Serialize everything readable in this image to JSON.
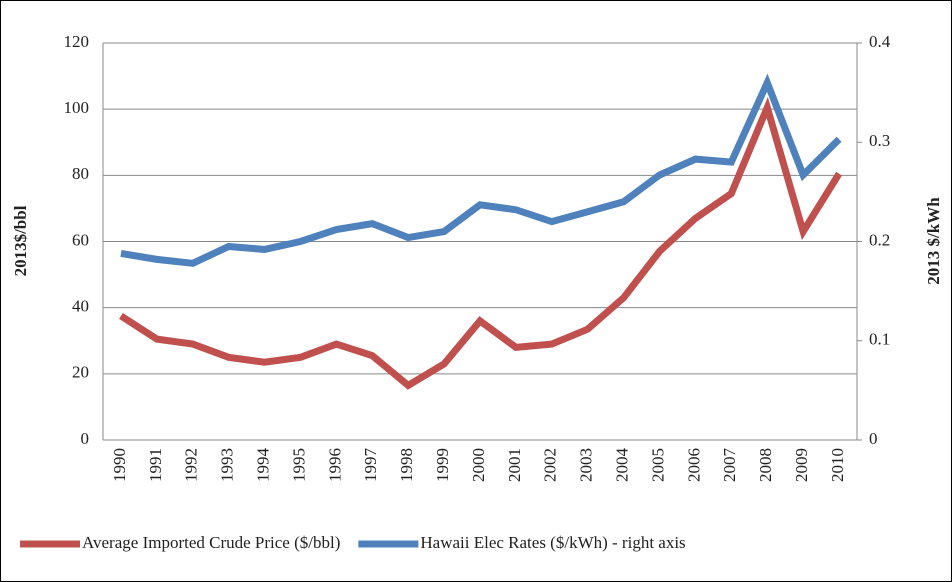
{
  "chart_data": {
    "type": "line",
    "categories": [
      "1990",
      "1991",
      "1992",
      "1993",
      "1994",
      "1995",
      "1996",
      "1997",
      "1998",
      "1999",
      "2000",
      "2001",
      "2002",
      "2003",
      "2004",
      "2005",
      "2006",
      "2007",
      "2008",
      "2009",
      "2010"
    ],
    "series": [
      {
        "name": "Average Imported Crude Price ($/bbl)",
        "color": "#c0504d",
        "values": [
          37.5,
          30.5,
          29,
          25,
          23.5,
          25,
          29,
          25.5,
          16.5,
          23,
          36,
          28,
          29,
          33.5,
          43,
          57,
          67,
          74.5,
          100.5,
          63,
          80.5
        ]
      },
      {
        "name": "Hawaii Elec Rates ($/kWh) - right axis",
        "color": "#4f81bd",
        "axis": "y2",
        "values": [
          0.188,
          0.182,
          0.178,
          0.195,
          0.192,
          0.2,
          0.212,
          0.218,
          0.204,
          0.21,
          0.237,
          0.232,
          0.22,
          0.23,
          0.24,
          0.267,
          0.283,
          0.28,
          0.36,
          0.267,
          0.303
        ]
      }
    ],
    "ylabel": "2013$/bbl",
    "y2label": "2013 $/kWh",
    "ylim": [
      0,
      120
    ],
    "yticks": [
      0,
      20,
      40,
      60,
      80,
      100,
      120
    ],
    "y2lim": [
      0,
      0.4
    ],
    "y2ticks": [
      0,
      0.1,
      0.2,
      0.3,
      0.4
    ],
    "grid": true,
    "legend": "bottom"
  }
}
